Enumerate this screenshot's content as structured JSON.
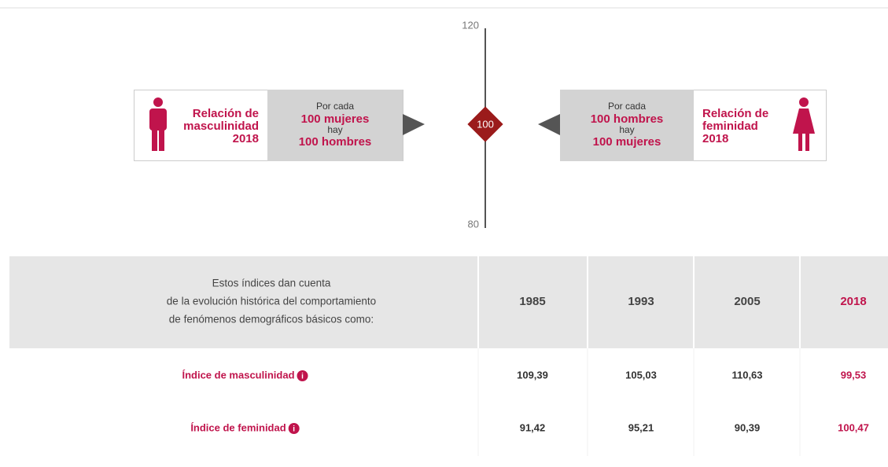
{
  "scale": {
    "top": "120",
    "bottom": "80",
    "marker": "100"
  },
  "left_card": {
    "title_lines": [
      "Relación de",
      "masculinidad",
      "2018"
    ],
    "text_lines": [
      "Por cada",
      "100 mujeres",
      "hay",
      "100 hombres"
    ]
  },
  "right_card": {
    "title_lines": [
      "Relación de",
      "feminidad",
      "2018"
    ],
    "text_lines": [
      "Por cada",
      "100 hombres",
      "hay",
      "100  mujeres"
    ]
  },
  "table": {
    "intro_lines": [
      "Estos índices dan cuenta",
      "de la evolución histórica del comportamiento",
      "de fenómenos demográficos básicos como:"
    ],
    "header": [
      "1985",
      "1993",
      "2005",
      "2018"
    ],
    "rows": [
      {
        "label": "Índice de masculinidad",
        "values": [
          "109,39",
          "105,03",
          "110,63",
          "99,53"
        ]
      },
      {
        "label": "Índice de feminidad",
        "values": [
          "91,42",
          "95,21",
          "90,39",
          "100,47"
        ]
      }
    ]
  }
}
